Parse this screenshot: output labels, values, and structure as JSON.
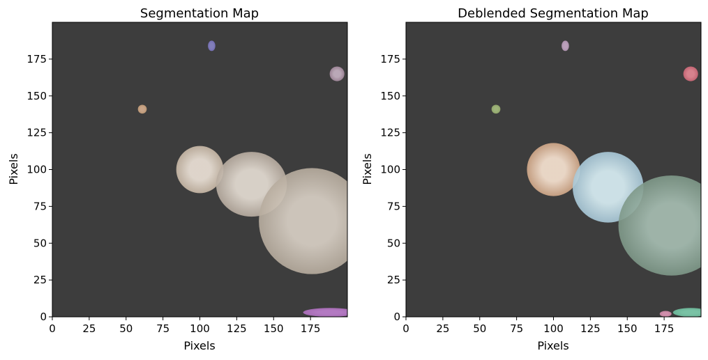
{
  "chart_data": [
    {
      "type": "image",
      "title": "Segmentation Map",
      "xlabel": "Pixels",
      "ylabel": "Pixels",
      "xlim": [
        0,
        200
      ],
      "ylim": [
        0,
        200
      ],
      "xticks": [
        0,
        25,
        50,
        75,
        100,
        125,
        150,
        175
      ],
      "yticks": [
        0,
        25,
        50,
        75,
        100,
        125,
        150,
        175
      ],
      "background_color": "#3d3d3d",
      "segments": [
        {
          "label": 1,
          "cx": 100,
          "cy": 100,
          "rx": 16,
          "ry": 16,
          "color": "#c8b8a6",
          "core": "#efe5da"
        },
        {
          "label": 1,
          "cx": 135,
          "cy": 90,
          "rx": 24,
          "ry": 22,
          "color": "#b8aca0",
          "core": "#e8e0d6"
        },
        {
          "label": 1,
          "cx": 176,
          "cy": 65,
          "rx": 36,
          "ry": 36,
          "color": "#b7ac9e",
          "core": "#dcd3c8"
        },
        {
          "label": 2,
          "cx": 108,
          "cy": 184,
          "rx": 2.5,
          "ry": 3.5,
          "color": "#7a74c0",
          "core": "#8a86c8"
        },
        {
          "label": 3,
          "cx": 193,
          "cy": 165,
          "rx": 5,
          "ry": 5,
          "color": "#a58a9e",
          "core": "#c8b4c4"
        },
        {
          "label": 4,
          "cx": 61,
          "cy": 141,
          "rx": 3,
          "ry": 3,
          "color": "#c8a07a",
          "core": "#d8b090"
        },
        {
          "label": 5,
          "cx": 188,
          "cy": 3,
          "rx": 18,
          "ry": 3,
          "color": "#b070c0",
          "core": "#c080d0"
        }
      ]
    },
    {
      "type": "image",
      "title": "Deblended Segmentation Map",
      "xlabel": "Pixels",
      "ylabel": "Pixels",
      "xlim": [
        0,
        200
      ],
      "ylim": [
        0,
        200
      ],
      "xticks": [
        0,
        25,
        50,
        75,
        100,
        125,
        150,
        175
      ],
      "yticks": [
        0,
        25,
        50,
        75,
        100,
        125,
        150,
        175
      ],
      "background_color": "#3d3d3d",
      "segments": [
        {
          "label": 1,
          "cx": 100,
          "cy": 100,
          "rx": 18,
          "ry": 18,
          "color": "#d2a888",
          "core": "#fbe6d4"
        },
        {
          "label": 2,
          "cx": 137,
          "cy": 88,
          "rx": 24,
          "ry": 24,
          "color": "#a8c8d8",
          "core": "#dcf2f8"
        },
        {
          "label": 3,
          "cx": 180,
          "cy": 62,
          "rx": 36,
          "ry": 34,
          "color": "#7e9888",
          "core": "#a8c0b4"
        },
        {
          "label": 4,
          "cx": 108,
          "cy": 184,
          "rx": 2.5,
          "ry": 3.5,
          "color": "#b89ab8",
          "core": "#c8aac8"
        },
        {
          "label": 5,
          "cx": 193,
          "cy": 165,
          "rx": 5,
          "ry": 5,
          "color": "#d06878",
          "core": "#e88a96"
        },
        {
          "label": 6,
          "cx": 61,
          "cy": 141,
          "rx": 3,
          "ry": 3,
          "color": "#9ab070",
          "core": "#a8c080"
        },
        {
          "label": 7,
          "cx": 193,
          "cy": 3,
          "rx": 12,
          "ry": 3,
          "color": "#70c0a0",
          "core": "#80d0b0"
        },
        {
          "label": 8,
          "cx": 176,
          "cy": 2,
          "rx": 4,
          "ry": 2,
          "color": "#d088a8",
          "core": "#e098b8"
        }
      ]
    }
  ]
}
